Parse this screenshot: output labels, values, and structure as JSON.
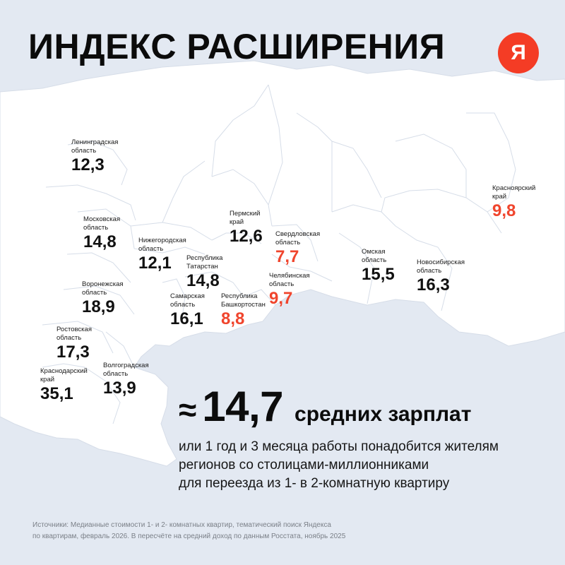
{
  "header": {
    "title": "ИНДЕКС РАСШИРЕНИЯ",
    "logo_letter": "Я"
  },
  "map": {
    "land_color": "#ffffff",
    "background_color": "#e3e9f2",
    "border_color": "#d6dde8",
    "highlight_color": "#f0452d",
    "regions": [
      {
        "name": "Ленинградская\nобласть",
        "value": "12,3",
        "highlight": false
      },
      {
        "name": "Московская\nобласть",
        "value": "14,8",
        "highlight": false
      },
      {
        "name": "Нижегородская\nобласть",
        "value": "12,1",
        "highlight": false
      },
      {
        "name": "Пермский\nкрай",
        "value": "12,6",
        "highlight": false
      },
      {
        "name": "Свердловская\nобласть",
        "value": "7,7",
        "highlight": true
      },
      {
        "name": "Республика\nТатарстан",
        "value": "14,8",
        "highlight": false
      },
      {
        "name": "Воронежская\nобласть",
        "value": "18,9",
        "highlight": false
      },
      {
        "name": "Самарская\nобласть",
        "value": "16,1",
        "highlight": false
      },
      {
        "name": "Республика\nБашкортостан",
        "value": "8,8",
        "highlight": true
      },
      {
        "name": "Челябинская\nобласть",
        "value": "9,7",
        "highlight": true
      },
      {
        "name": "Ростовская\nобласть",
        "value": "17,3",
        "highlight": false
      },
      {
        "name": "Краснодарский\nкрай",
        "value": "35,1",
        "highlight": false
      },
      {
        "name": "Волгоградская\nобласть",
        "value": "13,9",
        "highlight": false
      },
      {
        "name": "Омская\nобласть",
        "value": "15,5",
        "highlight": false
      },
      {
        "name": "Новосибирская\nобласть",
        "value": "16,3",
        "highlight": false
      },
      {
        "name": "Красноярский\nкрай",
        "value": "9,8",
        "highlight": true
      }
    ]
  },
  "summary": {
    "approx_sign": "≈",
    "value": "14,7",
    "unit": "средних зарплат",
    "lines": [
      "или 1 год и 3 месяца работы понадобится жителям",
      "регионов со столицами-миллионниками",
      "для переезда из 1- в 2-комнатную квартиру"
    ]
  },
  "source": {
    "lines": [
      "Источники: Медианные стоимости 1- и 2- комнатных квартир, тематический поиск Яндекса",
      "по квартирам, февраль 2026. В пересчёте на средний доход по данным Росстата, ноябрь 2025"
    ]
  }
}
